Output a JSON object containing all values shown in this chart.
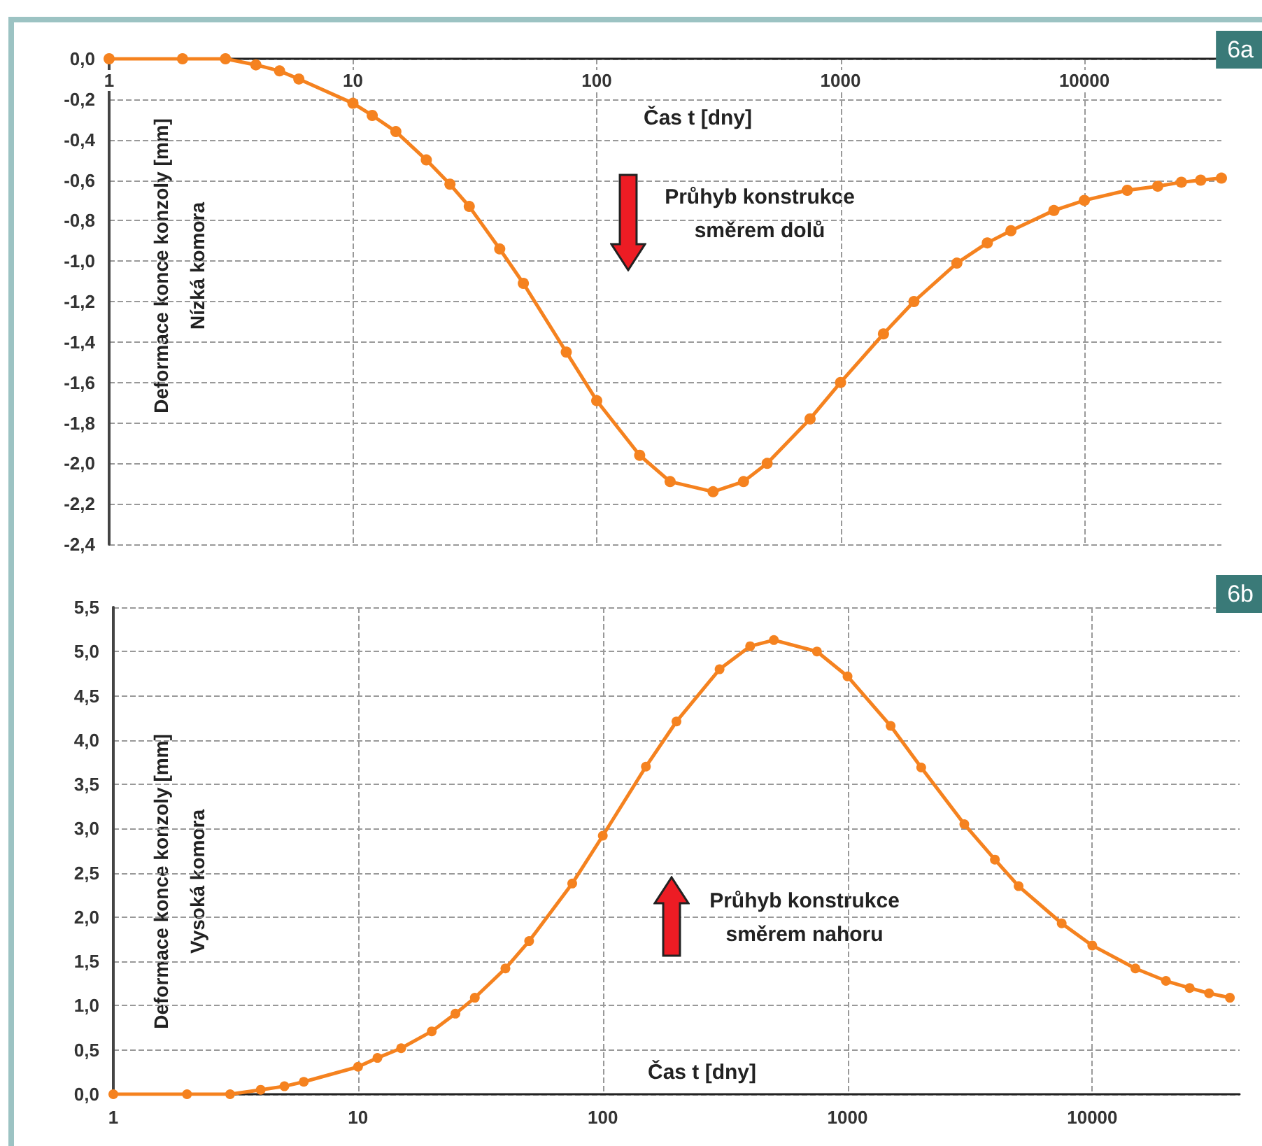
{
  "chart_data": [
    {
      "type": "line",
      "title": "6a",
      "xlabel": "Čas t [dny]",
      "ylabel": "Deformace konce konzoly [mm]\nNízká komora",
      "annotations": [
        "Průhyb konstrukce\nsměrem dolů"
      ],
      "x": [
        1,
        2,
        3,
        4,
        5,
        6,
        10,
        12,
        15,
        20,
        25,
        30,
        40,
        50,
        75,
        100,
        150,
        200,
        300,
        400,
        500,
        750,
        1000,
        1500,
        2000,
        3000,
        4000,
        5000,
        7500,
        10000,
        15000,
        20000,
        25000,
        30000,
        36500
      ],
      "series": [
        {
          "color": "#f5821f",
          "values": [
            0,
            0,
            0,
            -0.03,
            -0.06,
            -0.1,
            -0.22,
            -0.28,
            -0.36,
            -0.5,
            -0.62,
            -0.73,
            -0.94,
            -1.11,
            -1.45,
            -1.69,
            -1.96,
            -2.09,
            -2.14,
            -2.09,
            -2.0,
            -1.78,
            -1.6,
            -1.36,
            -1.2,
            -1.01,
            -0.91,
            -0.85,
            -0.75,
            -0.7,
            -0.65,
            -0.63,
            -0.61,
            -0.6,
            -0.59
          ]
        }
      ],
      "log": "x",
      "xlim": [
        1,
        36500
      ],
      "xticks": [
        1,
        10,
        100,
        1000,
        10000
      ],
      "ylim": [
        -2.4,
        0
      ],
      "yticks": [
        {
          "value": -2.4,
          "label": "-2,4"
        },
        {
          "value": -2.2,
          "label": "-2,2"
        },
        {
          "value": -2.0,
          "label": "-2,0"
        },
        {
          "value": -1.8,
          "label": "-1,8"
        },
        {
          "value": -1.6,
          "label": "-1,6"
        },
        {
          "value": -1.4,
          "label": "-1,4"
        },
        {
          "value": -1.2,
          "label": "-1,2"
        },
        {
          "value": -1.0,
          "label": "-1,0"
        },
        {
          "value": -0.8,
          "label": "-0,8"
        },
        {
          "value": -0.6,
          "label": "-0,6"
        },
        {
          "value": -0.4,
          "label": "-0,4"
        },
        {
          "value": -0.2,
          "label": "-0,2"
        },
        {
          "value": 0,
          "label": "0,0"
        }
      ],
      "grid": true,
      "marker": "circle",
      "line_style": "solid"
    },
    {
      "type": "line",
      "title": "6b",
      "xlabel": "Čas t [dny]",
      "ylabel": "Deformace konce konzoly [mm]\nVysoká komora",
      "annotations": [
        "Průhyb konstrukce\nsměrem nahoru"
      ],
      "x": [
        1,
        2,
        3,
        4,
        5,
        6,
        10,
        12,
        15,
        20,
        25,
        30,
        40,
        50,
        75,
        100,
        150,
        200,
        300,
        400,
        500,
        750,
        1000,
        1500,
        2000,
        3000,
        4000,
        5000,
        7500,
        10000,
        15000,
        20000,
        25000,
        30000,
        36500
      ],
      "series": [
        {
          "color": "#f5821f",
          "values": [
            0,
            0,
            0,
            0.05,
            0.09,
            0.14,
            0.31,
            0.41,
            0.52,
            0.71,
            0.91,
            1.09,
            1.42,
            1.73,
            2.38,
            2.92,
            3.7,
            4.21,
            4.8,
            5.06,
            5.13,
            5.0,
            4.72,
            4.16,
            3.69,
            3.05,
            2.65,
            2.35,
            1.93,
            1.68,
            1.42,
            1.28,
            1.2,
            1.14,
            1.09
          ]
        }
      ],
      "log": "x",
      "xlim": [
        1,
        40000
      ],
      "xticks": [
        1,
        10,
        100,
        1000,
        10000
      ],
      "ylim": [
        0,
        5.5
      ],
      "yticks": [
        {
          "value": 0,
          "label": "0,0"
        },
        {
          "value": 0.5,
          "label": "0,5"
        },
        {
          "value": 1.0,
          "label": "1,0"
        },
        {
          "value": 1.5,
          "label": "1,5"
        },
        {
          "value": 2.0,
          "label": "2,0"
        },
        {
          "value": 2.5,
          "label": "2,5"
        },
        {
          "value": 3.0,
          "label": "3,0"
        },
        {
          "value": 3.5,
          "label": "3,5"
        },
        {
          "value": 4.0,
          "label": "4,0"
        },
        {
          "value": 4.5,
          "label": "4,5"
        },
        {
          "value": 5.0,
          "label": "5,0"
        },
        {
          "value": 5.5,
          "label": "5,5"
        }
      ],
      "grid": true,
      "marker": "circle",
      "line_style": "solid"
    }
  ]
}
